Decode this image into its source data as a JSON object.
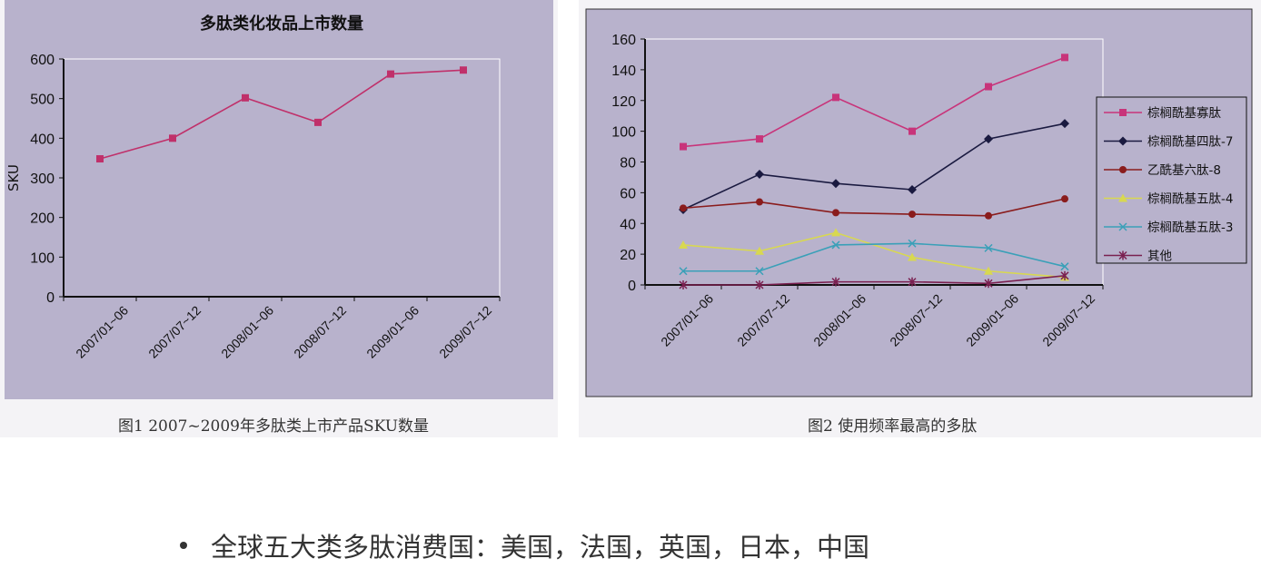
{
  "chart_data": [
    {
      "type": "line",
      "title": "多肽类化妆品上市数量",
      "caption": "图1 2007~2009年多肽类上市产品SKU数量",
      "ylabel": "SKU",
      "xlabel": "",
      "categories": [
        "2007/01~06",
        "2007/07~12",
        "2008/01~06",
        "2008/07~12",
        "2009/01~06",
        "2009/07~12"
      ],
      "ylim": [
        0,
        600
      ],
      "yticks": [
        0,
        100,
        200,
        300,
        400,
        500,
        600
      ],
      "series": [
        {
          "values": [
            348,
            400,
            502,
            440,
            562,
            572
          ],
          "color": "#c0306a",
          "marker": "square"
        }
      ],
      "grid": false
    },
    {
      "type": "line",
      "title": "",
      "caption": "图2 使用频率最高的多肽",
      "categories": [
        "2007/01~06",
        "2007/07~12",
        "2008/01~06",
        "2008/07~12",
        "2009/01~06",
        "2009/07~12"
      ],
      "ylim": [
        0,
        160
      ],
      "yticks": [
        0,
        20,
        40,
        60,
        80,
        100,
        120,
        140,
        160
      ],
      "legend_position": "right",
      "grid": false,
      "series": [
        {
          "name": "棕榈酰基寡肽",
          "values": [
            90,
            95,
            122,
            100,
            129,
            148
          ],
          "color": "#c8347a",
          "marker": "square"
        },
        {
          "name": "棕榈酰基四肽-7",
          "values": [
            49,
            72,
            66,
            62,
            95,
            105
          ],
          "color": "#1a1a40",
          "marker": "diamond"
        },
        {
          "name": "乙酰基六肽-8",
          "values": [
            50,
            54,
            47,
            46,
            45,
            56
          ],
          "color": "#8a1c1c",
          "marker": "circle"
        },
        {
          "name": "棕榈酰基五肽-4",
          "values": [
            26,
            22,
            34,
            18,
            9,
            5
          ],
          "color": "#d8d850",
          "marker": "triangle"
        },
        {
          "name": "棕榈酰基五肽-3",
          "values": [
            9,
            9,
            26,
            27,
            24,
            12
          ],
          "color": "#3aa0b8",
          "marker": "x"
        },
        {
          "name": "其他",
          "values": [
            0,
            0,
            2,
            2,
            1,
            6
          ],
          "color": "#7a2050",
          "marker": "star"
        }
      ]
    }
  ],
  "bullet": {
    "text": "全球五大类多肽消费国：美国，法国，英国，日本，中国"
  },
  "colors": {
    "panel_bg": "#b8b2cc",
    "plot_border": "#ffffff"
  }
}
